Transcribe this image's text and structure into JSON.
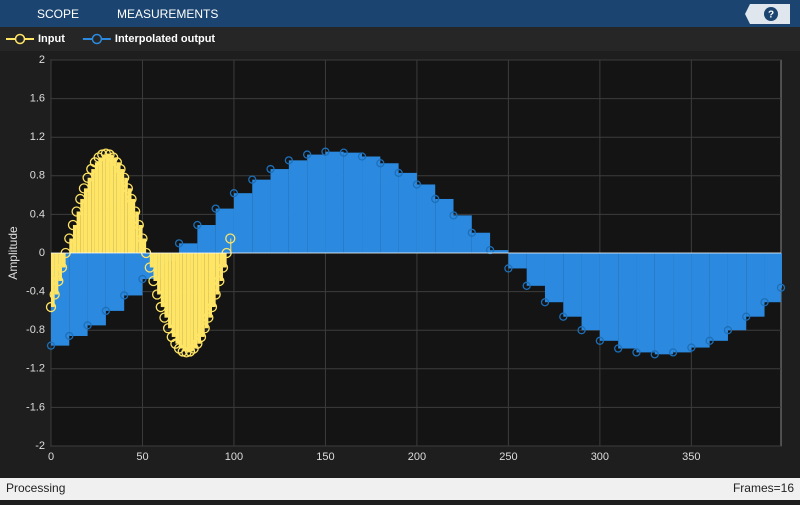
{
  "toolstrip": {
    "tabs": [
      "SCOPE",
      "MEASUREMENTS"
    ],
    "help": "?"
  },
  "status": {
    "left": "Processing",
    "right": "Frames=16"
  },
  "chart_data": {
    "type": "stem",
    "ylabel": "Amplitude",
    "xlim": [
      0,
      399
    ],
    "ylim": [
      -2,
      2
    ],
    "xticks": [
      0,
      50,
      100,
      150,
      200,
      250,
      300,
      350
    ],
    "yticks": [
      -2,
      -1.6,
      -1.2,
      -0.8,
      -0.4,
      0,
      0.4,
      0.8,
      1.2,
      1.6,
      2
    ],
    "grid": true,
    "series": [
      {
        "name": "Input",
        "color": "#ffe566",
        "x": [
          0,
          2,
          4,
          6,
          8,
          10,
          12,
          14,
          16,
          18,
          20,
          22,
          24,
          26,
          28,
          30,
          32,
          34,
          36,
          38,
          40,
          42,
          44,
          46,
          48,
          50,
          52,
          54,
          56,
          58,
          60,
          62,
          64,
          66,
          68,
          70,
          72,
          74,
          76,
          78,
          80,
          82,
          84,
          86,
          88,
          90,
          92,
          94,
          96,
          98
        ],
        "values": [
          -0.56,
          -0.43,
          -0.29,
          -0.15,
          0,
          0.15,
          0.29,
          0.43,
          0.56,
          0.67,
          0.78,
          0.87,
          0.94,
          0.99,
          1.02,
          1.03,
          1.02,
          0.99,
          0.94,
          0.87,
          0.78,
          0.67,
          0.56,
          0.43,
          0.29,
          0.15,
          0,
          -0.15,
          -0.29,
          -0.43,
          -0.56,
          -0.67,
          -0.78,
          -0.87,
          -0.94,
          -0.99,
          -1.02,
          -1.03,
          -1.02,
          -0.99,
          -0.94,
          -0.87,
          -0.78,
          -0.67,
          -0.56,
          -0.43,
          -0.29,
          -0.15,
          0,
          0.15
        ]
      },
      {
        "name": "Interpolated output",
        "color": "#2b8ae0",
        "x": [
          0,
          10,
          20,
          30,
          40,
          50,
          60,
          70,
          80,
          90,
          100,
          110,
          120,
          130,
          140,
          150,
          160,
          170,
          180,
          190,
          200,
          210,
          220,
          230,
          240,
          250,
          260,
          270,
          280,
          290,
          300,
          310,
          320,
          330,
          340,
          350,
          360,
          370,
          380,
          390,
          399
        ],
        "values": [
          -0.96,
          -0.86,
          -0.75,
          -0.6,
          -0.44,
          -0.27,
          -0.08,
          0.1,
          0.29,
          0.46,
          0.62,
          0.76,
          0.87,
          0.96,
          1.02,
          1.05,
          1.04,
          1,
          0.93,
          0.83,
          0.71,
          0.56,
          0.39,
          0.21,
          0.03,
          -0.16,
          -0.34,
          -0.51,
          -0.66,
          -0.8,
          -0.91,
          -0.99,
          -1.03,
          -1.05,
          -1.03,
          -0.98,
          -0.91,
          -0.8,
          -0.66,
          -0.51,
          -0.36
        ]
      }
    ]
  }
}
